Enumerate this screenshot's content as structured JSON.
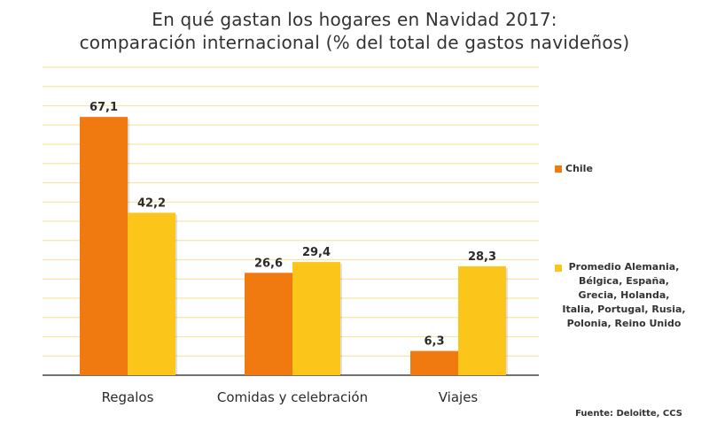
{
  "title_line1": "En qué gastan los hogares en Navidad 2017:",
  "title_line2": "comparación internacional  (% del total de gastos navideños)",
  "legend": {
    "chile": "Chile",
    "promedio": "Promedio Alemania, Bélgica, España, Grecia, Holanda, Italia, Portugal, Rusia, Polonia, Reino Unido"
  },
  "source": "Fuente: Deloitte, CCS",
  "colors": {
    "chile": "#F07A10",
    "promedio": "#FCC51A",
    "gridline": "#F5E6A8",
    "axis": "#444444"
  },
  "chart_data": {
    "type": "bar",
    "title": "En qué gastan los hogares en Navidad 2017: comparación internacional  (% del total de gastos navideños)",
    "categories": [
      "Regalos",
      "Comidas y celebración",
      "Viajes"
    ],
    "series": [
      {
        "name": "Chile",
        "values": [
          67.1,
          26.6,
          6.3
        ],
        "labels": [
          "67,1",
          "26,6",
          "6,3"
        ]
      },
      {
        "name": "Promedio Alemania, Bélgica, España, Grecia, Holanda, Italia, Portugal, Rusia, Polonia, Reino Unido",
        "values": [
          42.2,
          29.4,
          28.3
        ],
        "labels": [
          "42,2",
          "29,4",
          "28,3"
        ]
      }
    ],
    "ylim": [
      0,
      80
    ],
    "grid": true,
    "legend_position": "right",
    "xlabel": "",
    "ylabel": ""
  }
}
